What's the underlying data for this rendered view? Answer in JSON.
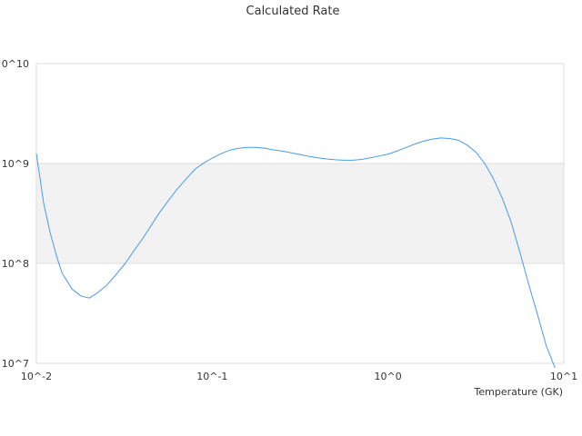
{
  "chart_data": {
    "type": "line",
    "title": "Calculated Rate",
    "xlabel": "Temperature (GK)",
    "ylabel": "",
    "x_scale": "log",
    "y_scale": "log",
    "xlim": [
      0.01,
      10
    ],
    "ylim": [
      10000000,
      10000000000
    ],
    "x_ticks": [
      {
        "value": 0.01,
        "label": "10^-2"
      },
      {
        "value": 0.1,
        "label": "10^-1"
      },
      {
        "value": 1,
        "label": "10^0"
      },
      {
        "value": 10,
        "label": "10^1"
      }
    ],
    "y_ticks": [
      {
        "value": 10000000,
        "label": "10^7"
      },
      {
        "value": 100000000,
        "label": "10^8"
      },
      {
        "value": 1000000000,
        "label": "10^9"
      },
      {
        "value": 10000000000,
        "label": "0^10"
      }
    ],
    "shaded_band": [
      100000000,
      1000000000
    ],
    "grid": true,
    "colors": {
      "series": "#4a9be8",
      "band": "#f2f2f2",
      "grid": "#dddddd"
    },
    "series": [
      {
        "x": [
          0.01,
          0.011,
          0.012,
          0.013,
          0.014,
          0.016,
          0.018,
          0.02,
          0.022,
          0.025,
          0.028,
          0.032,
          0.036,
          0.04,
          0.045,
          0.05,
          0.056,
          0.063,
          0.071,
          0.08,
          0.09,
          0.1,
          0.112,
          0.126,
          0.141,
          0.158,
          0.178,
          0.2,
          0.224,
          0.251,
          0.282,
          0.316,
          0.355,
          0.398,
          0.447,
          0.501,
          0.562,
          0.631,
          0.708,
          0.794,
          0.891,
          1.0,
          1.122,
          1.259,
          1.413,
          1.585,
          1.778,
          1.995,
          2.239,
          2.512,
          2.818,
          3.162,
          3.548,
          3.981,
          4.467,
          5.012,
          5.623,
          6.31,
          7.079,
          7.943,
          8.913
        ],
        "y": [
          1260000000,
          400000000,
          200000000,
          120000000,
          80000000,
          55000000,
          47000000,
          45000000,
          50000000,
          60000000,
          75000000,
          100000000,
          135000000,
          175000000,
          240000000,
          320000000,
          420000000,
          550000000,
          700000000,
          880000000,
          1020000000,
          1130000000,
          1250000000,
          1360000000,
          1420000000,
          1450000000,
          1450000000,
          1420000000,
          1370000000,
          1330000000,
          1280000000,
          1230000000,
          1180000000,
          1140000000,
          1110000000,
          1090000000,
          1080000000,
          1080000000,
          1100000000,
          1140000000,
          1190000000,
          1240000000,
          1330000000,
          1440000000,
          1560000000,
          1670000000,
          1750000000,
          1800000000,
          1780000000,
          1710000000,
          1530000000,
          1300000000,
          1000000000,
          700000000,
          450000000,
          260000000,
          130000000,
          62000000,
          31000000,
          15000000,
          9000000
        ]
      }
    ]
  }
}
